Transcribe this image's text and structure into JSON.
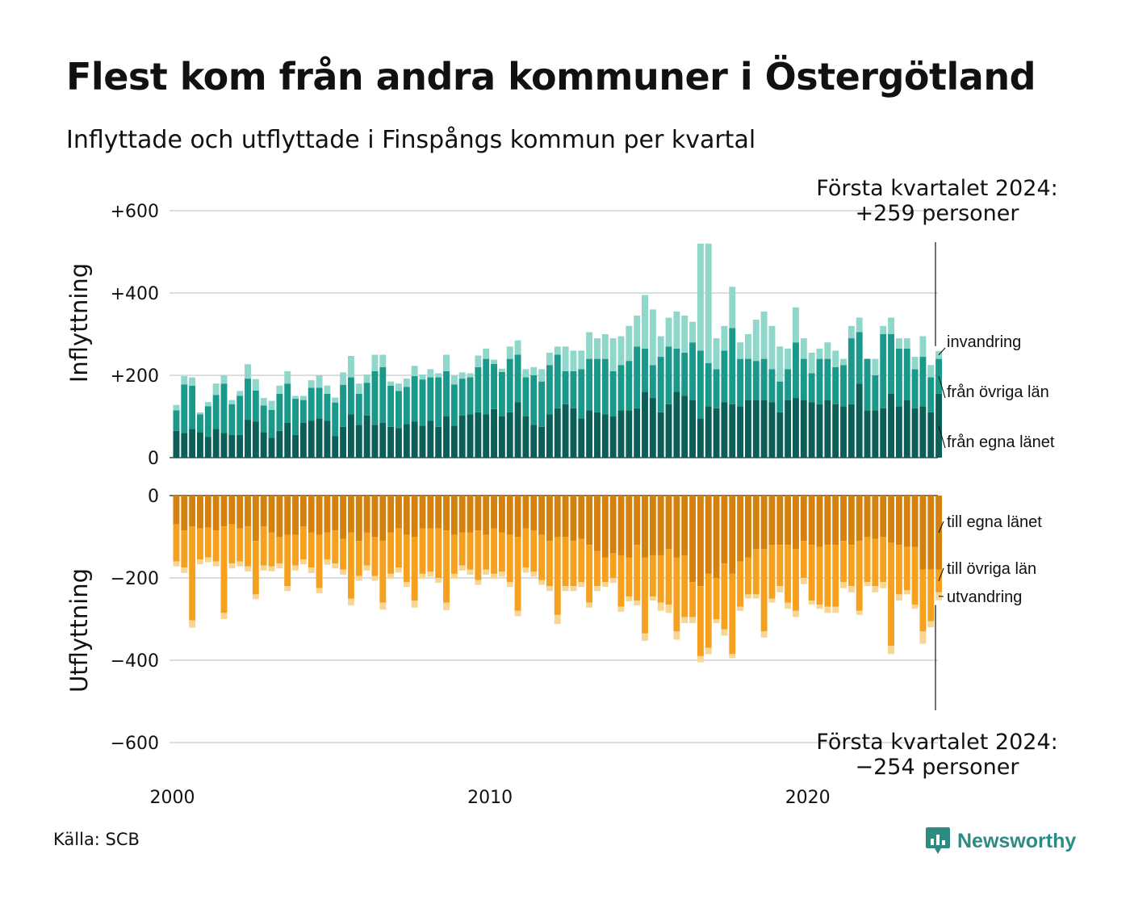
{
  "title": "Flest kom från andra kommuner i Östergötland",
  "subtitle": "Inflyttade och utflyttade i Finspångs kommun per kvartal",
  "source": "Källa: SCB",
  "brand": {
    "name": "Newsworthy",
    "color": "#2e8b84",
    "icon": "newsworthy-chart-bubble-icon"
  },
  "colors": {
    "in_own_county": "#0c5f57",
    "in_other_counties": "#1a998b",
    "in_immigration": "#8fd6cb",
    "out_own_county": "#d4820f",
    "out_other_counties": "#f5a11f",
    "out_emigration": "#f7d592",
    "grid": "#dddddd",
    "text": "#111111"
  },
  "chart_data": {
    "type": "bar",
    "stacked": true,
    "grid": true,
    "x_ticks": [
      "2000",
      "2010",
      "2020"
    ],
    "y_ticks": [
      "+600",
      "+400",
      "+200",
      "0",
      "0",
      "−200",
      "−400",
      "−600"
    ],
    "ylim_in": [
      0,
      600
    ],
    "ylim_out": [
      -600,
      0
    ],
    "panels": {
      "in": {
        "ylabel": "Inflyttning",
        "annotation_lines": [
          "Första kvartalet 2024:",
          "+259 personer"
        ],
        "legend_labels": [
          "invandring",
          "från övriga län",
          "från egna länet"
        ]
      },
      "out": {
        "ylabel": "Utflyttning",
        "annotation_lines": [
          "Första kvartalet 2024:",
          "−254 personer"
        ],
        "legend_labels": [
          "till egna länet",
          "till övriga län",
          "utvandring"
        ]
      }
    },
    "series_in": [
      {
        "key": "own_county",
        "legend": "från egna länet"
      },
      {
        "key": "other_counties",
        "legend": "från övriga län"
      },
      {
        "key": "immigration",
        "legend": "invandring"
      }
    ],
    "series_out": [
      {
        "key": "own_county",
        "legend": "till egna länet"
      },
      {
        "key": "other_counties",
        "legend": "till övriga län"
      },
      {
        "key": "emigration",
        "legend": "utvandring"
      }
    ],
    "quarters": [
      [
        "2000-K1",
        65,
        50,
        13,
        -70,
        -90,
        -12
      ],
      [
        "2000-K2",
        60,
        118,
        20,
        -85,
        -90,
        -13
      ],
      [
        "2000-K3",
        70,
        105,
        20,
        -75,
        -228,
        -18
      ],
      [
        "2000-K4",
        62,
        43,
        5,
        -80,
        -75,
        -12
      ],
      [
        "2001-K1",
        50,
        75,
        10,
        -78,
        -72,
        -12
      ],
      [
        "2001-K2",
        70,
        82,
        28,
        -85,
        -75,
        -12
      ],
      [
        "2001-K3",
        60,
        120,
        20,
        -75,
        -210,
        -15
      ],
      [
        "2001-K4",
        55,
        75,
        10,
        -70,
        -95,
        -12
      ],
      [
        "2002-K1",
        55,
        95,
        12,
        -80,
        -80,
        -12
      ],
      [
        "2002-K2",
        92,
        100,
        35,
        -75,
        -97,
        -12
      ],
      [
        "2002-K3",
        88,
        75,
        28,
        -110,
        -130,
        -12
      ],
      [
        "2002-K4",
        62,
        65,
        18,
        -75,
        -95,
        -12
      ],
      [
        "2003-K1",
        48,
        68,
        22,
        -90,
        -82,
        -12
      ],
      [
        "2003-K2",
        65,
        90,
        20,
        -100,
        -65,
        -12
      ],
      [
        "2003-K3",
        85,
        95,
        30,
        -95,
        -125,
        -12
      ],
      [
        "2003-K4",
        55,
        88,
        7,
        -95,
        -75,
        -12
      ],
      [
        "2004-K1",
        85,
        55,
        10,
        -75,
        -80,
        -12
      ],
      [
        "2004-K2",
        90,
        80,
        18,
        -90,
        -85,
        -13
      ],
      [
        "2004-K3",
        95,
        75,
        30,
        -95,
        -130,
        -12
      ],
      [
        "2004-K4",
        90,
        65,
        20,
        -90,
        -65,
        -13
      ],
      [
        "2005-K1",
        52,
        82,
        12,
        -85,
        -80,
        -12
      ],
      [
        "2005-K2",
        75,
        102,
        30,
        -105,
        -75,
        -12
      ],
      [
        "2005-K3",
        105,
        90,
        52,
        -90,
        -160,
        -17
      ],
      [
        "2005-K4",
        80,
        75,
        25,
        -110,
        -85,
        -12
      ],
      [
        "2006-K1",
        102,
        80,
        20,
        -90,
        -80,
        -12
      ],
      [
        "2006-K2",
        80,
        130,
        40,
        -100,
        -95,
        -12
      ],
      [
        "2006-K3",
        85,
        135,
        30,
        -110,
        -150,
        -17
      ],
      [
        "2006-K4",
        75,
        100,
        10,
        -90,
        -100,
        -12
      ],
      [
        "2007-K1",
        72,
        90,
        18,
        -80,
        -95,
        -12
      ],
      [
        "2007-K2",
        82,
        90,
        20,
        -95,
        -115,
        -12
      ],
      [
        "2007-K3",
        88,
        110,
        25,
        -100,
        -155,
        -17
      ],
      [
        "2007-K4",
        78,
        112,
        12,
        -80,
        -110,
        -12
      ],
      [
        "2008-K1",
        90,
        105,
        20,
        -80,
        -105,
        -12
      ],
      [
        "2008-K2",
        75,
        120,
        10,
        -80,
        -120,
        -12
      ],
      [
        "2008-K3",
        100,
        110,
        40,
        -85,
        -175,
        -18
      ],
      [
        "2008-K4",
        78,
        100,
        22,
        -95,
        -95,
        -12
      ],
      [
        "2009-K1",
        102,
        90,
        15,
        -90,
        -80,
        -12
      ],
      [
        "2009-K2",
        105,
        90,
        10,
        -90,
        -90,
        -12
      ],
      [
        "2009-K3",
        110,
        110,
        28,
        -85,
        -120,
        -12
      ],
      [
        "2009-K4",
        105,
        135,
        25,
        -95,
        -85,
        -12
      ],
      [
        "2010-K1",
        118,
        110,
        10,
        -80,
        -110,
        -12
      ],
      [
        "2010-K2",
        100,
        108,
        8,
        -90,
        -95,
        -12
      ],
      [
        "2010-K3",
        110,
        130,
        30,
        -95,
        -115,
        -12
      ],
      [
        "2010-K4",
        135,
        115,
        35,
        -100,
        -180,
        -13
      ],
      [
        "2011-K1",
        100,
        95,
        20,
        -80,
        -95,
        -12
      ],
      [
        "2011-K2",
        80,
        120,
        20,
        -85,
        -100,
        -12
      ],
      [
        "2011-K3",
        75,
        110,
        30,
        -95,
        -110,
        -12
      ],
      [
        "2011-K4",
        105,
        120,
        30,
        -110,
        -110,
        -12
      ],
      [
        "2012-K1",
        120,
        130,
        20,
        -100,
        -190,
        -22
      ],
      [
        "2012-K2",
        130,
        80,
        60,
        -100,
        -120,
        -12
      ],
      [
        "2012-K3",
        120,
        90,
        50,
        -110,
        -110,
        -12
      ],
      [
        "2012-K4",
        95,
        120,
        45,
        -105,
        -105,
        -12
      ],
      [
        "2013-K1",
        115,
        125,
        65,
        -120,
        -140,
        -12
      ],
      [
        "2013-K2",
        110,
        130,
        50,
        -135,
        -85,
        -12
      ],
      [
        "2013-K3",
        105,
        135,
        60,
        -150,
        -60,
        -12
      ],
      [
        "2013-K4",
        100,
        110,
        80,
        -140,
        -60,
        -12
      ],
      [
        "2014-K1",
        115,
        110,
        70,
        -145,
        -125,
        -12
      ],
      [
        "2014-K2",
        115,
        120,
        85,
        -150,
        -95,
        -12
      ],
      [
        "2014-K3",
        120,
        150,
        75,
        -120,
        -135,
        -12
      ],
      [
        "2014-K4",
        160,
        105,
        130,
        -150,
        -185,
        -18
      ],
      [
        "2015-K1",
        145,
        80,
        135,
        -145,
        -100,
        -10
      ],
      [
        "2015-K2",
        110,
        135,
        50,
        -145,
        -115,
        -20
      ],
      [
        "2015-K3",
        130,
        140,
        70,
        -130,
        -135,
        -20
      ],
      [
        "2015-K4",
        160,
        105,
        90,
        -150,
        -180,
        -20
      ],
      [
        "2016-K1",
        150,
        105,
        90,
        -145,
        -150,
        -15
      ],
      [
        "2016-K2",
        140,
        140,
        50,
        -210,
        -85,
        -15
      ],
      [
        "2016-K3",
        95,
        165,
        260,
        -220,
        -170,
        -15
      ],
      [
        "2016-K4",
        125,
        105,
        290,
        -190,
        -180,
        -15
      ],
      [
        "2017-K1",
        120,
        95,
        75,
        -200,
        -100,
        -10
      ],
      [
        "2017-K2",
        135,
        125,
        60,
        -165,
        -160,
        -15
      ],
      [
        "2017-K3",
        130,
        185,
        100,
        -190,
        -195,
        -10
      ],
      [
        "2017-K4",
        125,
        115,
        40,
        -160,
        -110,
        -10
      ],
      [
        "2018-K1",
        140,
        100,
        60,
        -150,
        -90,
        -10
      ],
      [
        "2018-K2",
        140,
        95,
        100,
        -130,
        -110,
        -10
      ],
      [
        "2018-K3",
        140,
        100,
        115,
        -130,
        -200,
        -15
      ],
      [
        "2018-K4",
        135,
        80,
        105,
        -120,
        -130,
        -10
      ],
      [
        "2019-K1",
        110,
        75,
        85,
        -120,
        -100,
        -15
      ],
      [
        "2019-K2",
        140,
        75,
        50,
        -120,
        -140,
        -15
      ],
      [
        "2019-K3",
        145,
        135,
        85,
        -130,
        -150,
        -15
      ],
      [
        "2019-K4",
        140,
        100,
        50,
        -110,
        -90,
        -15
      ],
      [
        "2020-K1",
        135,
        70,
        50,
        -120,
        -135,
        -10
      ],
      [
        "2020-K2",
        130,
        110,
        25,
        -125,
        -140,
        -10
      ],
      [
        "2020-K3",
        140,
        100,
        40,
        -120,
        -150,
        -15
      ],
      [
        "2020-K4",
        130,
        90,
        40,
        -120,
        -150,
        -15
      ],
      [
        "2021-K1",
        125,
        100,
        15,
        -110,
        -100,
        -15
      ],
      [
        "2021-K2",
        130,
        160,
        30,
        -120,
        -100,
        -15
      ],
      [
        "2021-K3",
        180,
        125,
        35,
        -110,
        -170,
        -10
      ],
      [
        "2021-K4",
        115,
        125,
        0,
        -100,
        -110,
        -10
      ],
      [
        "2022-K1",
        115,
        85,
        40,
        -105,
        -115,
        -15
      ],
      [
        "2022-K2",
        120,
        180,
        20,
        -100,
        -110,
        -15
      ],
      [
        "2022-K3",
        155,
        145,
        40,
        -115,
        -250,
        -20
      ],
      [
        "2022-K4",
        125,
        140,
        25,
        -120,
        -120,
        -15
      ],
      [
        "2023-K1",
        140,
        125,
        25,
        -125,
        -105,
        -10
      ],
      [
        "2023-K2",
        120,
        95,
        30,
        -125,
        -140,
        -10
      ],
      [
        "2023-K3",
        125,
        120,
        50,
        -180,
        -150,
        -30
      ],
      [
        "2023-K4",
        110,
        85,
        30,
        -180,
        -125,
        -15
      ],
      [
        "2024-K1",
        155,
        85,
        19,
        -180,
        -55,
        -19
      ]
    ]
  }
}
